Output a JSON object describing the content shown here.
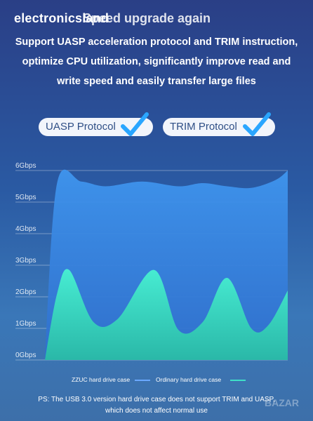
{
  "watermark": "electronicsland",
  "headline": "Speed upgrade again",
  "description": {
    "line1": "Support UASP acceleration protocol and TRIM instruction,",
    "line2": "optimize CPU utilization, significantly improve read and",
    "line3": "write speed and easily transfer large files"
  },
  "badges": [
    {
      "label": "UASP Protocol",
      "icon": "checkmark-icon"
    },
    {
      "label": "TRIM Protocol",
      "icon": "checkmark-icon"
    }
  ],
  "footnote": {
    "line1": "PS: The USB 3.0 version hard drive case does not support TRIM and UASP,",
    "line2": "which does not affect normal use"
  },
  "corner_logo": "BAZAR",
  "colors": {
    "ssd_fill": "#3d8fe6",
    "hdd_fill": "#3fe0c8",
    "legend_blue": "#6aa8ff",
    "legend_teal": "#3fe0c8"
  },
  "chart_data": {
    "type": "area",
    "yticks": [
      "0Gbps",
      "1Gbps",
      "2Gbps",
      "3Gbps",
      "4Gbps",
      "5Gbps",
      "6Gbps"
    ],
    "ylim": [
      0,
      6
    ],
    "grid": true,
    "legend_placement": "bottom",
    "series": [
      {
        "name": "ZZUC hard drive case",
        "x": [
          0,
          0.05,
          0.15,
          0.25,
          0.4,
          0.55,
          0.65,
          0.75,
          0.85,
          0.95,
          1
        ],
        "values": [
          0.1,
          5.6,
          5.65,
          5.5,
          5.65,
          5.5,
          5.6,
          5.5,
          5.45,
          5.7,
          6.0
        ]
      },
      {
        "name": "Ordinary hard drive case",
        "x": [
          0,
          0.05,
          0.1,
          0.2,
          0.3,
          0.45,
          0.55,
          0.65,
          0.75,
          0.85,
          0.92,
          1
        ],
        "values": [
          0,
          2.1,
          2.85,
          1.2,
          1.3,
          2.85,
          0.95,
          1.2,
          2.6,
          1.0,
          1.1,
          2.2
        ]
      }
    ]
  }
}
